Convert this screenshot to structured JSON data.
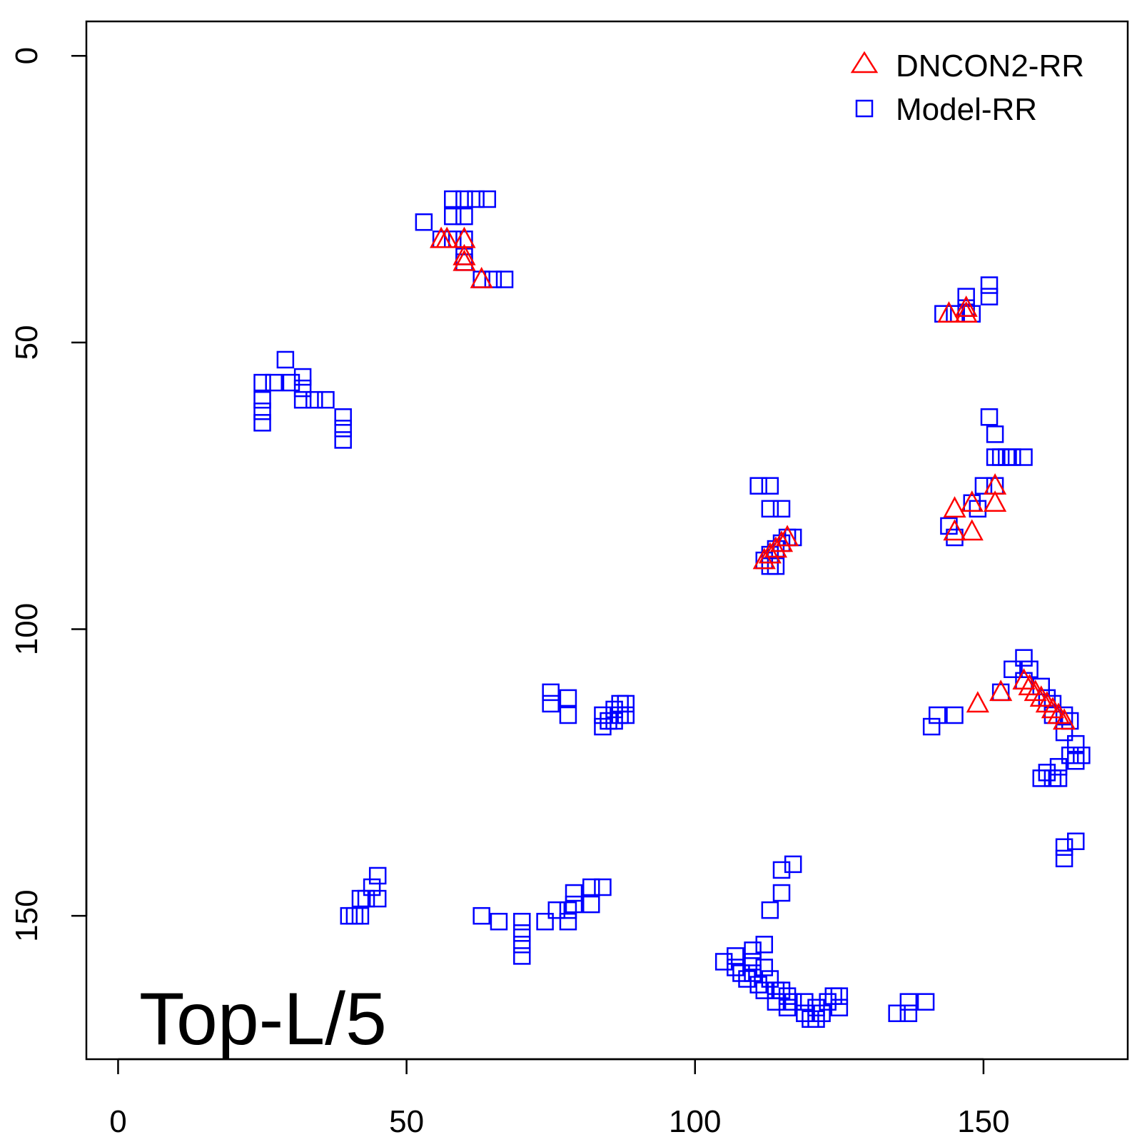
{
  "chart_data": {
    "type": "scatter",
    "title": "",
    "xlabel": "",
    "ylabel": "",
    "xlim": [
      -5.5,
      175
    ],
    "ylim": [
      -6,
      175
    ],
    "y_reversed": true,
    "x_ticks": [
      "0",
      "50",
      "100",
      "150"
    ],
    "x_tick_values": [
      0,
      50,
      100,
      150
    ],
    "y_ticks": [
      "0",
      "50",
      "100",
      "150"
    ],
    "y_tick_values": [
      0,
      50,
      100,
      150
    ],
    "panel_label": "Top-L/5",
    "legend": {
      "position": "top-right",
      "entries": [
        {
          "label": "DNCON2-RR",
          "marker": "triangle",
          "color": "#ff0000"
        },
        {
          "label": "Model-RR",
          "marker": "square",
          "color": "#0000ff"
        }
      ]
    },
    "series": [
      {
        "name": "DNCON2-RR",
        "marker": "triangle",
        "color": "#ff0000",
        "points": [
          [
            56,
            32
          ],
          [
            57,
            32
          ],
          [
            60,
            32
          ],
          [
            60,
            35
          ],
          [
            60,
            36
          ],
          [
            63,
            39
          ],
          [
            144,
            45
          ],
          [
            147,
            44
          ],
          [
            147,
            45
          ],
          [
            112,
            88
          ],
          [
            113,
            87
          ],
          [
            114,
            86
          ],
          [
            115,
            85
          ],
          [
            116,
            84
          ],
          [
            145,
            79
          ],
          [
            145,
            83
          ],
          [
            148,
            78
          ],
          [
            148,
            83
          ],
          [
            152,
            75
          ],
          [
            152,
            78
          ],
          [
            149,
            113
          ],
          [
            153,
            111
          ],
          [
            157,
            109
          ],
          [
            158,
            110
          ],
          [
            159,
            111
          ],
          [
            160,
            112
          ],
          [
            161,
            113
          ],
          [
            162,
            114
          ],
          [
            163,
            115
          ],
          [
            164,
            116
          ]
        ]
      },
      {
        "name": "Model-RR",
        "marker": "square",
        "color": "#0000ff",
        "points": [
          [
            58,
            25
          ],
          [
            60,
            25
          ],
          [
            62,
            25
          ],
          [
            64,
            25
          ],
          [
            58,
            28
          ],
          [
            60,
            28
          ],
          [
            53,
            29
          ],
          [
            56,
            32
          ],
          [
            58,
            32
          ],
          [
            60,
            32
          ],
          [
            60,
            35
          ],
          [
            60,
            36
          ],
          [
            63,
            39
          ],
          [
            65,
            39
          ],
          [
            67,
            39
          ],
          [
            143,
            45
          ],
          [
            145,
            45
          ],
          [
            147,
            44
          ],
          [
            147,
            42
          ],
          [
            151,
            40
          ],
          [
            151,
            42
          ],
          [
            148,
            45
          ],
          [
            29,
            53
          ],
          [
            25,
            57
          ],
          [
            27,
            57
          ],
          [
            25,
            60
          ],
          [
            30,
            57
          ],
          [
            32,
            56
          ],
          [
            32,
            58
          ],
          [
            32,
            60
          ],
          [
            34,
            60
          ],
          [
            36,
            60
          ],
          [
            25,
            62
          ],
          [
            25,
            64
          ],
          [
            39,
            63
          ],
          [
            39,
            65
          ],
          [
            39,
            67
          ],
          [
            111,
            75
          ],
          [
            113,
            75
          ],
          [
            113,
            79
          ],
          [
            115,
            79
          ],
          [
            112,
            88
          ],
          [
            113,
            89
          ],
          [
            114,
            89
          ],
          [
            113,
            87
          ],
          [
            114,
            86
          ],
          [
            115,
            85
          ],
          [
            116,
            84
          ],
          [
            117,
            84
          ],
          [
            151,
            63
          ],
          [
            152,
            66
          ],
          [
            152,
            70
          ],
          [
            153,
            70
          ],
          [
            154,
            70
          ],
          [
            155,
            70
          ],
          [
            157,
            70
          ],
          [
            152,
            75
          ],
          [
            150,
            75
          ],
          [
            148,
            78
          ],
          [
            144,
            82
          ],
          [
            145,
            84
          ],
          [
            149,
            79
          ],
          [
            75,
            111
          ],
          [
            75,
            113
          ],
          [
            78,
            112
          ],
          [
            78,
            115
          ],
          [
            84,
            115
          ],
          [
            84,
            117
          ],
          [
            85,
            116
          ],
          [
            86,
            114
          ],
          [
            86,
            116
          ],
          [
            87,
            113
          ],
          [
            87,
            115
          ],
          [
            88,
            113
          ],
          [
            88,
            115
          ],
          [
            141,
            117
          ],
          [
            142,
            115
          ],
          [
            145,
            115
          ],
          [
            153,
            111
          ],
          [
            155,
            107
          ],
          [
            157,
            105
          ],
          [
            158,
            107
          ],
          [
            157,
            109
          ],
          [
            160,
            110
          ],
          [
            161,
            112
          ],
          [
            162,
            113
          ],
          [
            162,
            115
          ],
          [
            164,
            115
          ],
          [
            165,
            116
          ],
          [
            164,
            118
          ],
          [
            166,
            120
          ],
          [
            167,
            122
          ],
          [
            165,
            122
          ],
          [
            163,
            124
          ],
          [
            161,
            125
          ],
          [
            162,
            126
          ],
          [
            160,
            126
          ],
          [
            163,
            126
          ],
          [
            166,
            123
          ],
          [
            164,
            138
          ],
          [
            164,
            140
          ],
          [
            166,
            137
          ],
          [
            40,
            150
          ],
          [
            41,
            150
          ],
          [
            42,
            150
          ],
          [
            42,
            147
          ],
          [
            43,
            147
          ],
          [
            44,
            145
          ],
          [
            45,
            143
          ],
          [
            45,
            147
          ],
          [
            63,
            150
          ],
          [
            66,
            151
          ],
          [
            70,
            151
          ],
          [
            70,
            153
          ],
          [
            70,
            155
          ],
          [
            70,
            157
          ],
          [
            74,
            151
          ],
          [
            76,
            149
          ],
          [
            78,
            151
          ],
          [
            78,
            149
          ],
          [
            79,
            148
          ],
          [
            79,
            146
          ],
          [
            82,
            145
          ],
          [
            82,
            148
          ],
          [
            84,
            145
          ],
          [
            105,
            158
          ],
          [
            107,
            157
          ],
          [
            107,
            159
          ],
          [
            108,
            160
          ],
          [
            109,
            161
          ],
          [
            110,
            156
          ],
          [
            110,
            158
          ],
          [
            110,
            160
          ],
          [
            111,
            162
          ],
          [
            112,
            155
          ],
          [
            112,
            159
          ],
          [
            112,
            163
          ],
          [
            113,
            161
          ],
          [
            114,
            163
          ],
          [
            114,
            165
          ],
          [
            115,
            163
          ],
          [
            116,
            164
          ],
          [
            116,
            166
          ],
          [
            117,
            165
          ],
          [
            113,
            149
          ],
          [
            115,
            146
          ],
          [
            115,
            142
          ],
          [
            117,
            141
          ],
          [
            119,
            165
          ],
          [
            119,
            167
          ],
          [
            120,
            168
          ],
          [
            121,
            168
          ],
          [
            121,
            166
          ],
          [
            122,
            167
          ],
          [
            123,
            165
          ],
          [
            124,
            164
          ],
          [
            125,
            164
          ],
          [
            125,
            166
          ],
          [
            135,
            167
          ],
          [
            137,
            167
          ],
          [
            137,
            165
          ],
          [
            140,
            165
          ]
        ]
      }
    ]
  }
}
